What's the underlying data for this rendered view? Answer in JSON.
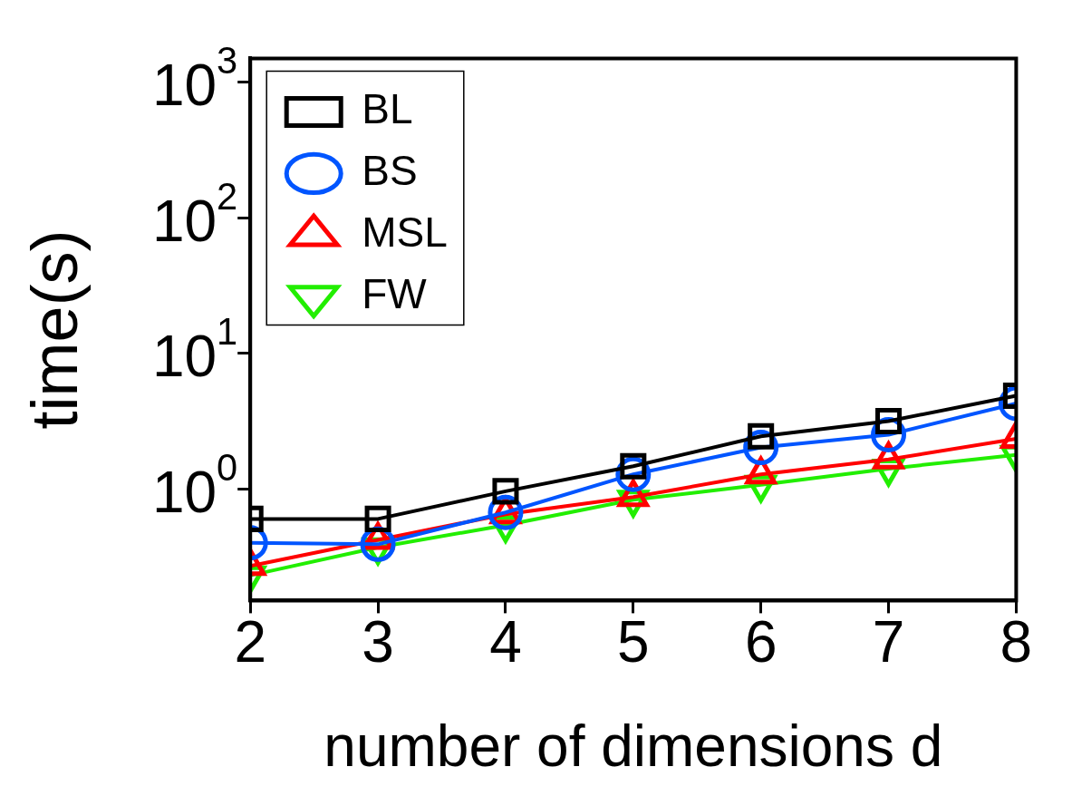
{
  "chart_data": {
    "type": "line",
    "xlabel": "number of dimensions d",
    "ylabel": "time(s)",
    "x": [
      2,
      3,
      4,
      5,
      6,
      7,
      8
    ],
    "xlim": [
      2,
      8
    ],
    "xticks": [
      2,
      3,
      4,
      5,
      6,
      7,
      8
    ],
    "log": "y",
    "ylim": [
      0.15,
      1500
    ],
    "yticks": [
      {
        "value": 1,
        "label": "10$^{0}$"
      },
      {
        "value": 10,
        "label": "10$^{1}$"
      },
      {
        "value": 100,
        "label": "10$^{2}$"
      },
      {
        "value": 1000,
        "label": "10$^{3}$"
      }
    ],
    "legend": "top left",
    "grid": false,
    "line_style": "solid",
    "series": [
      {
        "name": "BL",
        "color": "#000000",
        "marker": "square",
        "values": [
          0.6,
          0.6,
          0.96,
          1.47,
          2.44,
          3.16,
          4.87
        ]
      },
      {
        "name": "BS",
        "color": "#0055ff",
        "marker": "circle",
        "values": [
          0.4,
          0.39,
          0.67,
          1.28,
          2.02,
          2.51,
          4.27
        ]
      },
      {
        "name": "MSL",
        "color": "#ff0000",
        "marker": "triangle",
        "values": [
          0.27,
          0.42,
          0.65,
          0.87,
          1.28,
          1.65,
          2.34
        ]
      },
      {
        "name": "FW",
        "color": "#22ee00",
        "marker": "triangle-down",
        "values": [
          0.23,
          0.37,
          0.54,
          0.83,
          1.07,
          1.41,
          1.78
        ]
      }
    ]
  }
}
